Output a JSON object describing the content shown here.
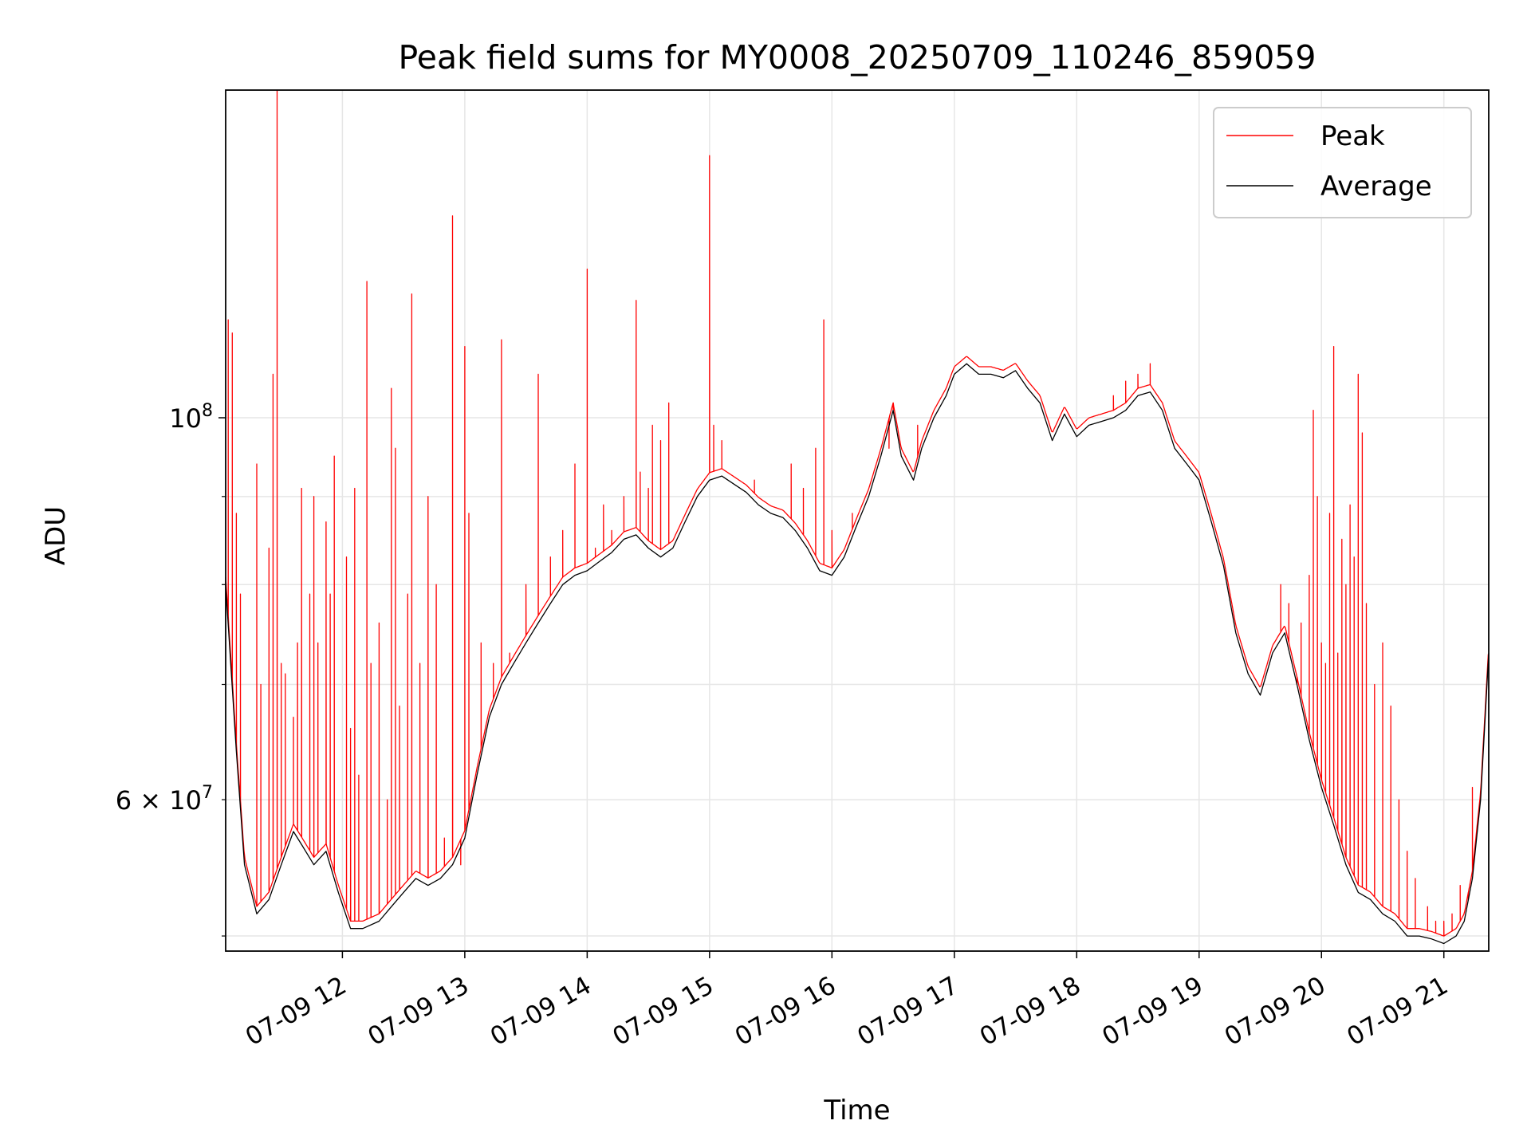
{
  "chart_data": {
    "type": "line",
    "title": "Peak field sums for MY0008_20250709_110246_859059",
    "xlabel": "Time",
    "ylabel": "ADU",
    "yscale": "log",
    "xlim": [
      "2025-07-09T11:02:46",
      "2025-07-09T21:22:00"
    ],
    "ylim": [
      49000000,
      155000000
    ],
    "grid": true,
    "legend_position": "upper right",
    "x_ticks": [
      "07-09 12",
      "07-09 13",
      "07-09 14",
      "07-09 15",
      "07-09 16",
      "07-09 17",
      "07-09 18",
      "07-09 19",
      "07-09 20",
      "07-09 21"
    ],
    "x_tick_times": [
      "2025-07-09T12:00",
      "2025-07-09T13:00",
      "2025-07-09T14:00",
      "2025-07-09T15:00",
      "2025-07-09T16:00",
      "2025-07-09T17:00",
      "2025-07-09T18:00",
      "2025-07-09T19:00",
      "2025-07-09T20:00",
      "2025-07-09T21:00"
    ],
    "y_major_ticks": [
      {
        "value": 100000000,
        "base": "10",
        "exp": "8"
      }
    ],
    "y_labeled_minor_ticks": [
      {
        "value": 60000000,
        "mant": "6 × 10",
        "exp": "7"
      }
    ],
    "y_minor_ticks": [
      50000000,
      60000000,
      70000000,
      80000000,
      90000000
    ],
    "series": [
      {
        "name": "Average",
        "color": "#000000",
        "points": [
          [
            "11:02:46",
            80000000
          ],
          [
            "11:08",
            64000000
          ],
          [
            "11:12",
            55000000
          ],
          [
            "11:18",
            51500000
          ],
          [
            "11:24",
            52500000
          ],
          [
            "11:30",
            55000000
          ],
          [
            "11:36",
            57500000
          ],
          [
            "11:40",
            56500000
          ],
          [
            "11:46",
            55000000
          ],
          [
            "11:52",
            56000000
          ],
          [
            "11:58",
            53000000
          ],
          [
            "12:04",
            50500000
          ],
          [
            "12:10",
            50500000
          ],
          [
            "12:18",
            51000000
          ],
          [
            "12:24",
            52000000
          ],
          [
            "12:30",
            53000000
          ],
          [
            "12:36",
            54000000
          ],
          [
            "12:42",
            53500000
          ],
          [
            "12:48",
            54000000
          ],
          [
            "12:54",
            55000000
          ],
          [
            "13:00",
            57000000
          ],
          [
            "13:06",
            62000000
          ],
          [
            "13:12",
            67000000
          ],
          [
            "13:18",
            70000000
          ],
          [
            "13:24",
            72000000
          ],
          [
            "13:30",
            74000000
          ],
          [
            "13:36",
            76000000
          ],
          [
            "13:42",
            78000000
          ],
          [
            "13:48",
            80000000
          ],
          [
            "13:54",
            81000000
          ],
          [
            "14:00",
            81500000
          ],
          [
            "14:06",
            82500000
          ],
          [
            "14:12",
            83500000
          ],
          [
            "14:18",
            85000000
          ],
          [
            "14:24",
            85500000
          ],
          [
            "14:30",
            84000000
          ],
          [
            "14:36",
            83000000
          ],
          [
            "14:42",
            84000000
          ],
          [
            "14:48",
            87000000
          ],
          [
            "14:54",
            90000000
          ],
          [
            "15:00",
            92000000
          ],
          [
            "15:06",
            92500000
          ],
          [
            "15:12",
            91500000
          ],
          [
            "15:18",
            90500000
          ],
          [
            "15:24",
            89000000
          ],
          [
            "15:30",
            88000000
          ],
          [
            "15:36",
            87500000
          ],
          [
            "15:42",
            86000000
          ],
          [
            "15:48",
            84000000
          ],
          [
            "15:54",
            81500000
          ],
          [
            "16:00",
            81000000
          ],
          [
            "16:06",
            83000000
          ],
          [
            "16:12",
            86500000
          ],
          [
            "16:18",
            90000000
          ],
          [
            "16:24",
            95000000
          ],
          [
            "16:30",
            101000000
          ],
          [
            "16:34",
            95000000
          ],
          [
            "16:40",
            92000000
          ],
          [
            "16:44",
            96000000
          ],
          [
            "16:50",
            100000000
          ],
          [
            "16:56",
            103000000
          ],
          [
            "17:00",
            106000000
          ],
          [
            "17:06",
            107500000
          ],
          [
            "17:12",
            106000000
          ],
          [
            "17:18",
            106000000
          ],
          [
            "17:24",
            105500000
          ],
          [
            "17:30",
            106500000
          ],
          [
            "17:36",
            104000000
          ],
          [
            "17:42",
            102000000
          ],
          [
            "17:48",
            97000000
          ],
          [
            "17:54",
            100500000
          ],
          [
            "18:00",
            97500000
          ],
          [
            "18:06",
            99000000
          ],
          [
            "18:12",
            99500000
          ],
          [
            "18:18",
            100000000
          ],
          [
            "18:24",
            101000000
          ],
          [
            "18:30",
            103000000
          ],
          [
            "18:36",
            103500000
          ],
          [
            "18:42",
            101000000
          ],
          [
            "18:48",
            96000000
          ],
          [
            "18:54",
            94000000
          ],
          [
            "19:00",
            92000000
          ],
          [
            "19:06",
            87000000
          ],
          [
            "19:12",
            82000000
          ],
          [
            "19:18",
            75000000
          ],
          [
            "19:24",
            71000000
          ],
          [
            "19:30",
            69000000
          ],
          [
            "19:36",
            73000000
          ],
          [
            "19:42",
            75000000
          ],
          [
            "19:48",
            70000000
          ],
          [
            "19:54",
            65000000
          ],
          [
            "20:00",
            61000000
          ],
          [
            "20:06",
            58000000
          ],
          [
            "20:12",
            55000000
          ],
          [
            "20:18",
            53000000
          ],
          [
            "20:24",
            52500000
          ],
          [
            "20:30",
            51500000
          ],
          [
            "20:36",
            51000000
          ],
          [
            "20:42",
            50000000
          ],
          [
            "20:48",
            50000000
          ],
          [
            "20:54",
            49800000
          ],
          [
            "21:00",
            49500000
          ],
          [
            "21:06",
            50000000
          ],
          [
            "21:10",
            51000000
          ],
          [
            "21:14",
            54000000
          ],
          [
            "21:18",
            60000000
          ],
          [
            "21:22",
            73000000
          ]
        ]
      },
      {
        "name": "Peak",
        "color": "#ff0000",
        "spikes": [
          [
            "11:04",
            114000000
          ],
          [
            "11:06",
            112000000
          ],
          [
            "11:08",
            88000000
          ],
          [
            "11:10",
            79000000
          ],
          [
            "11:18",
            94000000
          ],
          [
            "11:20",
            70000000
          ],
          [
            "11:24",
            84000000
          ],
          [
            "11:26",
            106000000
          ],
          [
            "11:28",
            155000000
          ],
          [
            "11:30",
            72000000
          ],
          [
            "11:32",
            71000000
          ],
          [
            "11:36",
            67000000
          ],
          [
            "11:38",
            74000000
          ],
          [
            "11:40",
            91000000
          ],
          [
            "11:44",
            79000000
          ],
          [
            "11:46",
            90000000
          ],
          [
            "11:48",
            74000000
          ],
          [
            "11:52",
            87000000
          ],
          [
            "11:54",
            79000000
          ],
          [
            "11:56",
            95000000
          ],
          [
            "12:02",
            83000000
          ],
          [
            "12:04",
            66000000
          ],
          [
            "12:06",
            91000000
          ],
          [
            "12:08",
            62000000
          ],
          [
            "12:12",
            120000000
          ],
          [
            "12:14",
            72000000
          ],
          [
            "12:18",
            76000000
          ],
          [
            "12:22",
            60000000
          ],
          [
            "12:24",
            104000000
          ],
          [
            "12:26",
            96000000
          ],
          [
            "12:28",
            68000000
          ],
          [
            "12:32",
            79000000
          ],
          [
            "12:34",
            118000000
          ],
          [
            "12:38",
            72000000
          ],
          [
            "12:42",
            90000000
          ],
          [
            "12:46",
            80000000
          ],
          [
            "12:50",
            57000000
          ],
          [
            "12:54",
            131000000
          ],
          [
            "12:58",
            55000000
          ],
          [
            "13:00",
            110000000
          ],
          [
            "13:02",
            88000000
          ],
          [
            "13:08",
            74000000
          ],
          [
            "13:14",
            72000000
          ],
          [
            "13:18",
            111000000
          ],
          [
            "13:22",
            73000000
          ],
          [
            "13:30",
            80000000
          ],
          [
            "13:36",
            106000000
          ],
          [
            "13:42",
            83000000
          ],
          [
            "13:48",
            86000000
          ],
          [
            "13:54",
            94000000
          ],
          [
            "14:00",
            122000000
          ],
          [
            "14:04",
            84000000
          ],
          [
            "14:08",
            89000000
          ],
          [
            "14:12",
            86000000
          ],
          [
            "14:18",
            90000000
          ],
          [
            "14:24",
            117000000
          ],
          [
            "14:26",
            93000000
          ],
          [
            "14:30",
            91000000
          ],
          [
            "14:32",
            99000000
          ],
          [
            "14:36",
            97000000
          ],
          [
            "14:40",
            102000000
          ],
          [
            "15:00",
            142000000
          ],
          [
            "15:02",
            99000000
          ],
          [
            "15:06",
            97000000
          ],
          [
            "15:22",
            92000000
          ],
          [
            "15:40",
            94000000
          ],
          [
            "15:46",
            91000000
          ],
          [
            "15:52",
            96000000
          ],
          [
            "15:56",
            114000000
          ],
          [
            "16:00",
            86000000
          ],
          [
            "16:10",
            88000000
          ],
          [
            "16:28",
            96000000
          ],
          [
            "16:30",
            101000000
          ],
          [
            "16:36",
            95000000
          ],
          [
            "16:42",
            99000000
          ],
          [
            "18:18",
            103000000
          ],
          [
            "18:24",
            105000000
          ],
          [
            "18:30",
            106000000
          ],
          [
            "18:36",
            107500000
          ],
          [
            "18:42",
            102000000
          ],
          [
            "19:40",
            80000000
          ],
          [
            "19:44",
            78000000
          ],
          [
            "19:48",
            70000000
          ],
          [
            "19:50",
            76000000
          ],
          [
            "19:54",
            81000000
          ],
          [
            "19:56",
            101000000
          ],
          [
            "19:58",
            90000000
          ],
          [
            "20:00",
            74000000
          ],
          [
            "20:02",
            72000000
          ],
          [
            "20:04",
            88000000
          ],
          [
            "20:06",
            110000000
          ],
          [
            "20:08",
            73000000
          ],
          [
            "20:10",
            85000000
          ],
          [
            "20:12",
            80000000
          ],
          [
            "20:14",
            89000000
          ],
          [
            "20:16",
            83000000
          ],
          [
            "20:18",
            106000000
          ],
          [
            "20:20",
            98000000
          ],
          [
            "20:22",
            78000000
          ],
          [
            "20:26",
            70000000
          ],
          [
            "20:30",
            74000000
          ],
          [
            "20:34",
            68000000
          ],
          [
            "20:38",
            60000000
          ],
          [
            "20:42",
            56000000
          ],
          [
            "20:46",
            54000000
          ],
          [
            "20:52",
            52000000
          ],
          [
            "20:56",
            51000000
          ],
          [
            "21:00",
            51000000
          ],
          [
            "21:04",
            51500000
          ],
          [
            "21:08",
            53500000
          ],
          [
            "21:12",
            52500000
          ],
          [
            "21:14",
            61000000
          ]
        ]
      }
    ]
  }
}
